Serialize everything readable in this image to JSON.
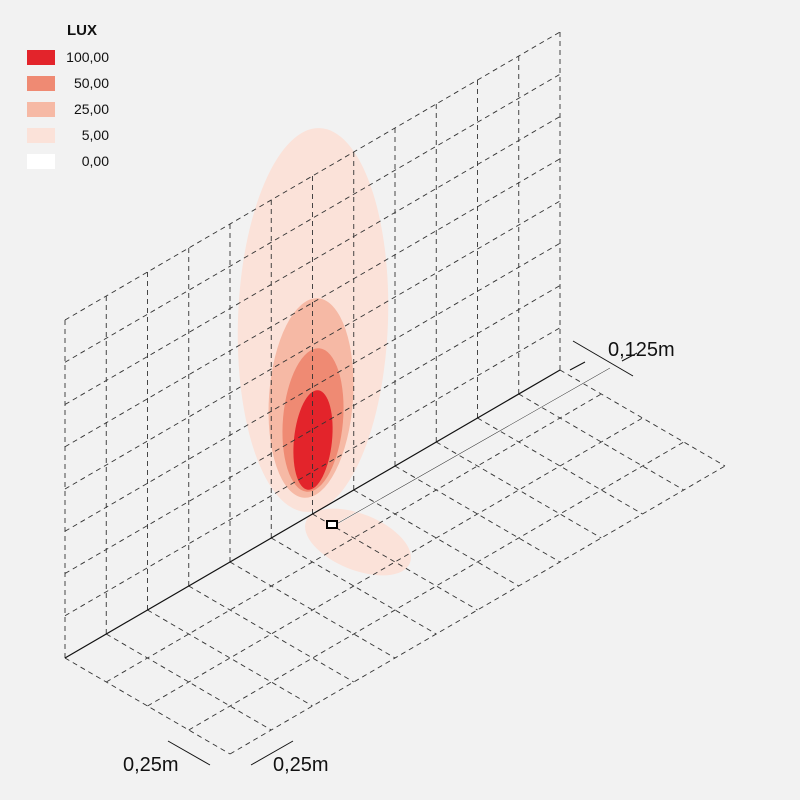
{
  "legend": {
    "title": "LUX",
    "items": [
      {
        "label": "100,00",
        "color": "#e3242b"
      },
      {
        "label": "50,00",
        "color": "#ef8a73"
      },
      {
        "label": "25,00",
        "color": "#f6b9a5"
      },
      {
        "label": "5,00",
        "color": "#fbe2d9"
      },
      {
        "label": "0,00",
        "color": "#ffffff"
      }
    ]
  },
  "dimensions": {
    "spacing": "0,125m",
    "floor_depth": "0,25m",
    "floor_width": "0,25m"
  }
}
